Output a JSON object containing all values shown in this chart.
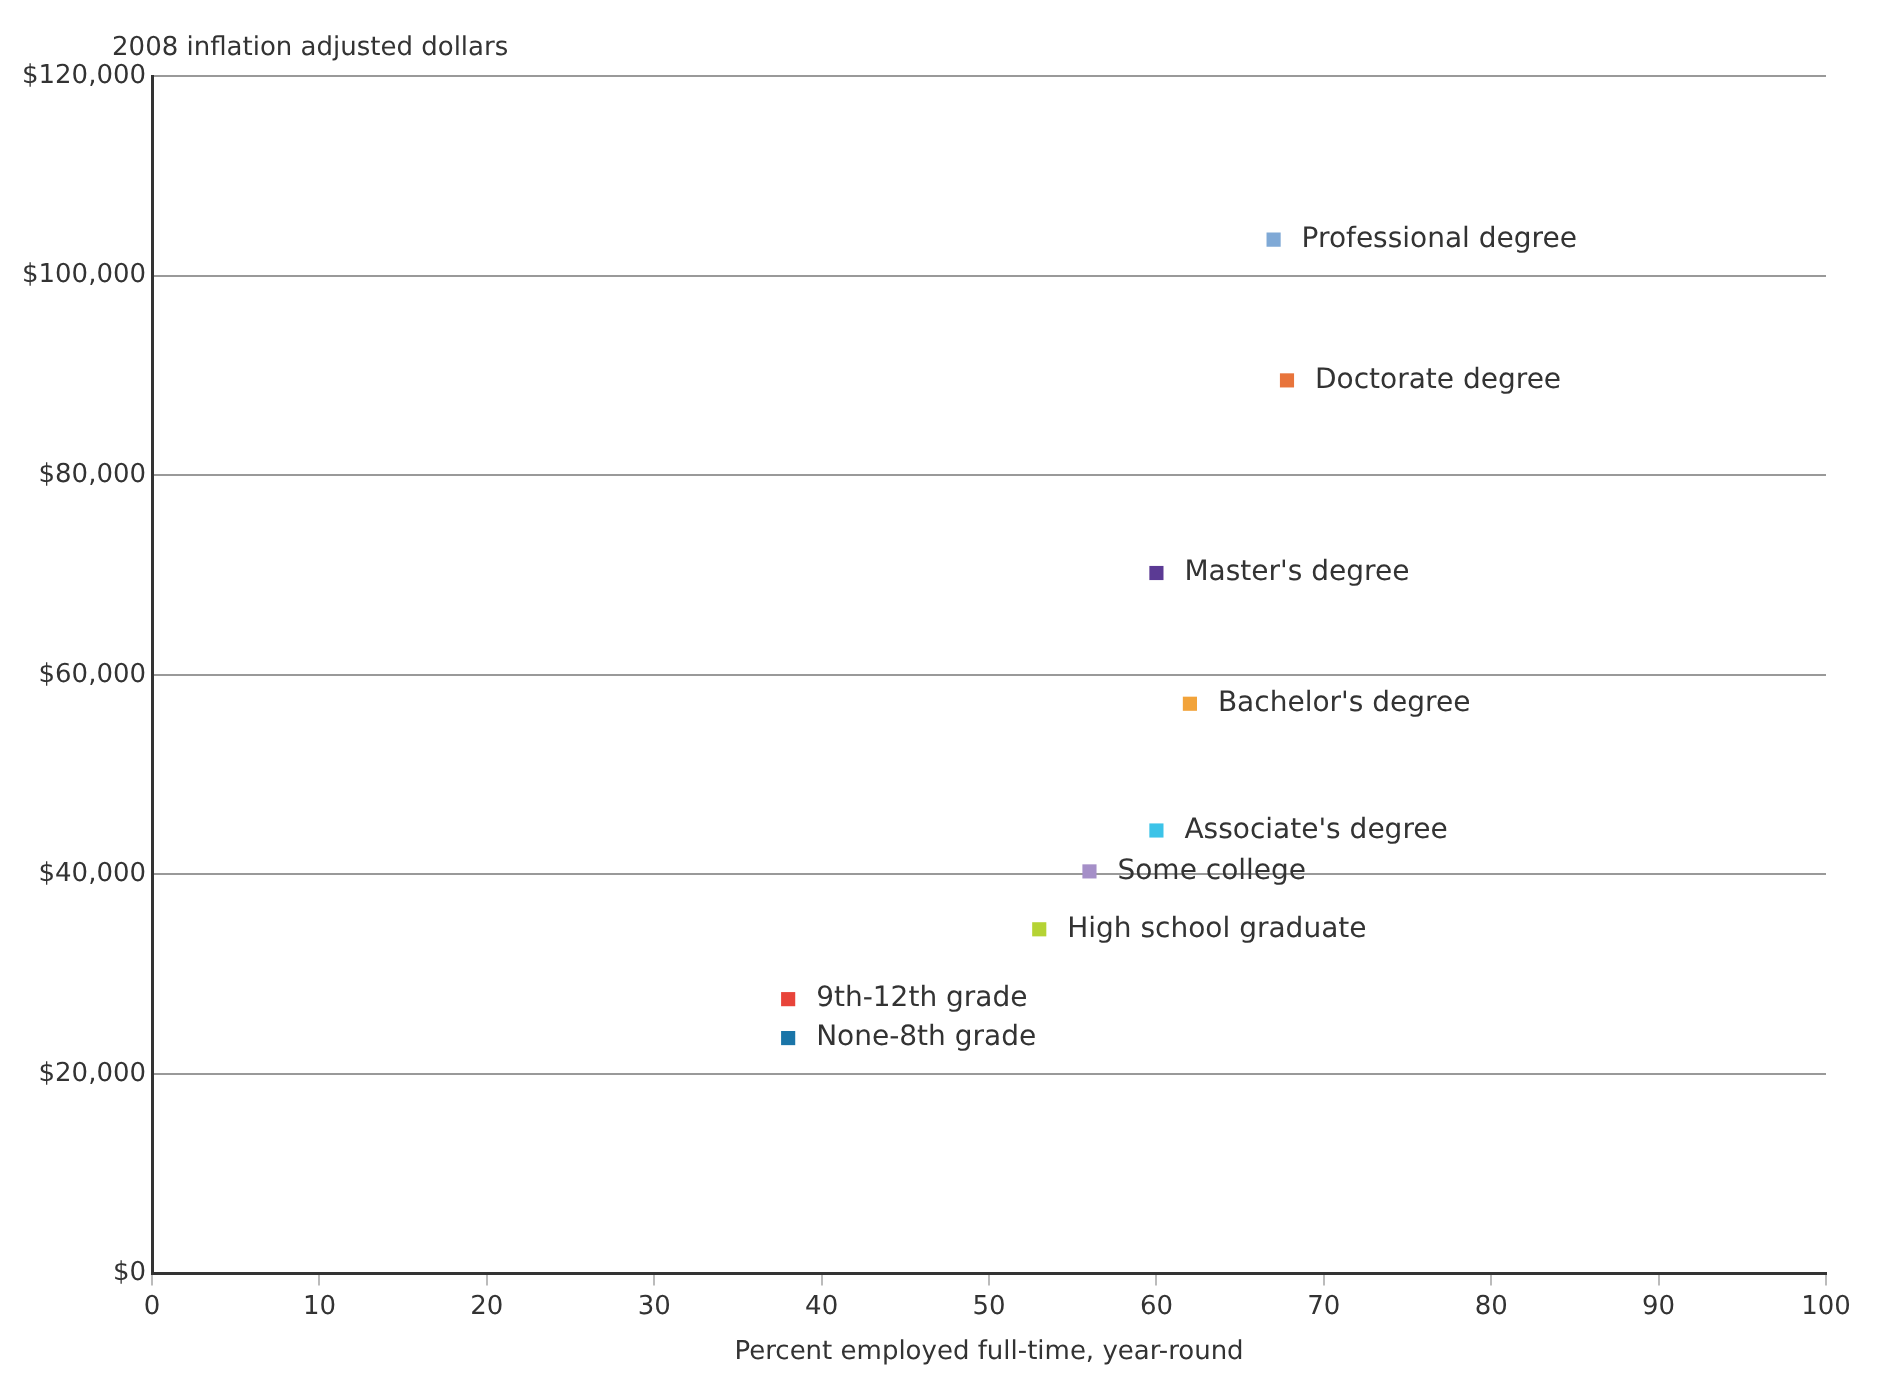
{
  "chart_data": {
    "type": "scatter",
    "ylabel": "2008 inflation adjusted dollars",
    "xlabel": "Percent employed full-time, year-round",
    "xlim": [
      0,
      100
    ],
    "xticks": [
      0,
      10,
      20,
      30,
      40,
      50,
      60,
      70,
      80,
      90,
      100
    ],
    "ylim": [
      0,
      120000
    ],
    "yticks": [
      {
        "value": 0,
        "label": "$0"
      },
      {
        "value": 20000,
        "label": "$20,000"
      },
      {
        "value": 40000,
        "label": "$40,000"
      },
      {
        "value": 60000,
        "label": "$60,000"
      },
      {
        "value": 80000,
        "label": "$80,000"
      },
      {
        "value": 100000,
        "label": "$100,000"
      },
      {
        "value": 120000,
        "label": "$120,000"
      }
    ],
    "grid": "y",
    "legend": false,
    "marker": "square",
    "series": [
      {
        "name": "Professional degree",
        "color": "#7fa9d6",
        "x": [
          67
        ],
        "values": [
          103600
        ]
      },
      {
        "name": "Doctorate degree",
        "color": "#e8743b",
        "x": [
          67.8
        ],
        "values": [
          89500
        ]
      },
      {
        "name": "Master's degree",
        "color": "#5b3a94",
        "x": [
          60
        ],
        "values": [
          70200
        ]
      },
      {
        "name": "Bachelor's degree",
        "color": "#f2a33a",
        "x": [
          62
        ],
        "values": [
          57100
        ]
      },
      {
        "name": "Associate's degree",
        "color": "#3cc3e8",
        "x": [
          60
        ],
        "values": [
          44400
        ]
      },
      {
        "name": "Some college",
        "color": "#a58fc8",
        "x": [
          56
        ],
        "values": [
          40300
        ]
      },
      {
        "name": "High school graduate",
        "color": "#b5d334",
        "x": [
          53
        ],
        "values": [
          34500
        ]
      },
      {
        "name": "9th-12th grade",
        "color": "#e8443a",
        "x": [
          38
        ],
        "values": [
          27500
        ]
      },
      {
        "name": "None-8th grade",
        "color": "#1a75a8",
        "x": [
          38
        ],
        "values": [
          23600
        ]
      }
    ]
  }
}
